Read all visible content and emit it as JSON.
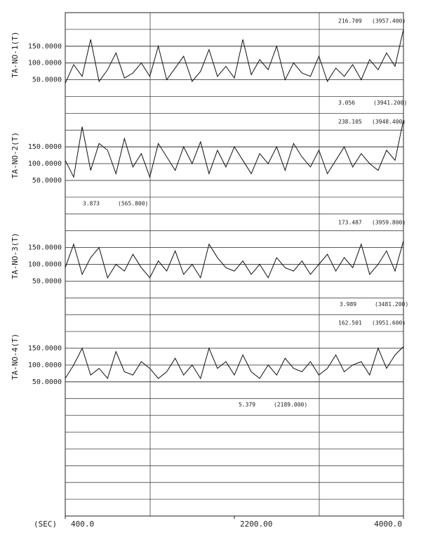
{
  "chart_data": [
    {
      "type": "line",
      "y_label": "TA-NO-1(T)",
      "max_label": "216.709",
      "max_time_label": "(3957.400)",
      "min_label": "3.056",
      "min_time_label": "(3941.200)",
      "xlim": [
        400,
        4000
      ],
      "ylim": [
        0,
        250
      ],
      "yticks": [
        {
          "value": 50,
          "label": "50.0000"
        },
        {
          "value": 100,
          "label": "100.0000"
        },
        {
          "value": 150,
          "label": "150.0000"
        }
      ],
      "color": "#111",
      "x": [
        400,
        490,
        580,
        670,
        760,
        850,
        940,
        1030,
        1120,
        1210,
        1300,
        1390,
        1480,
        1570,
        1660,
        1750,
        1840,
        1930,
        2020,
        2110,
        2200,
        2290,
        2380,
        2470,
        2560,
        2650,
        2740,
        2830,
        2920,
        3010,
        3100,
        3190,
        3280,
        3370,
        3460,
        3550,
        3640,
        3730,
        3820,
        3910,
        4000
      ],
      "values": [
        40,
        95,
        60,
        170,
        45,
        80,
        130,
        55,
        70,
        100,
        60,
        150,
        50,
        85,
        120,
        45,
        75,
        140,
        60,
        90,
        55,
        170,
        65,
        110,
        80,
        150,
        50,
        100,
        70,
        60,
        120,
        45,
        85,
        60,
        95,
        50,
        110,
        80,
        130,
        90,
        200
      ]
    },
    {
      "type": "line",
      "y_label": "TA-NO-2(T)",
      "max_label": "238.105",
      "max_time_label": "(3948.400)",
      "min_label": "3.873",
      "min_time_label": "(565.800)",
      "xlim": [
        400,
        4000
      ],
      "ylim": [
        0,
        250
      ],
      "yticks": [
        {
          "value": 50,
          "label": "50.0000"
        },
        {
          "value": 100,
          "label": "100.0000"
        },
        {
          "value": 150,
          "label": "150.0000"
        }
      ],
      "color": "#111",
      "x": [
        400,
        490,
        580,
        670,
        760,
        850,
        940,
        1030,
        1120,
        1210,
        1300,
        1390,
        1480,
        1570,
        1660,
        1750,
        1840,
        1930,
        2020,
        2110,
        2200,
        2290,
        2380,
        2470,
        2560,
        2650,
        2740,
        2830,
        2920,
        3010,
        3100,
        3190,
        3280,
        3370,
        3460,
        3550,
        3640,
        3730,
        3820,
        3910,
        4000
      ],
      "values": [
        110,
        60,
        210,
        80,
        160,
        140,
        70,
        175,
        90,
        130,
        60,
        160,
        120,
        80,
        150,
        100,
        165,
        70,
        140,
        90,
        150,
        110,
        70,
        130,
        100,
        150,
        80,
        160,
        120,
        90,
        140,
        70,
        110,
        150,
        90,
        130,
        100,
        80,
        140,
        110,
        230
      ]
    },
    {
      "type": "line",
      "y_label": "TA-NO-3(T)",
      "max_label": "173.487",
      "max_time_label": "(3959.800)",
      "min_label": "3.989",
      "min_time_label": "(3481.200)",
      "xlim": [
        400,
        4000
      ],
      "ylim": [
        0,
        250
      ],
      "yticks": [
        {
          "value": 50,
          "label": "50.0000"
        },
        {
          "value": 100,
          "label": "100.0000"
        },
        {
          "value": 150,
          "label": "150.0000"
        }
      ],
      "color": "#111",
      "x": [
        400,
        490,
        580,
        670,
        760,
        850,
        940,
        1030,
        1120,
        1210,
        1300,
        1390,
        1480,
        1570,
        1660,
        1750,
        1840,
        1930,
        2020,
        2110,
        2200,
        2290,
        2380,
        2470,
        2560,
        2650,
        2740,
        2830,
        2920,
        3010,
        3100,
        3190,
        3280,
        3370,
        3460,
        3550,
        3640,
        3730,
        3820,
        3910,
        4000
      ],
      "values": [
        90,
        160,
        70,
        120,
        150,
        60,
        100,
        80,
        130,
        90,
        60,
        110,
        80,
        140,
        70,
        100,
        60,
        160,
        120,
        90,
        80,
        110,
        70,
        100,
        60,
        120,
        90,
        80,
        110,
        70,
        100,
        130,
        80,
        120,
        90,
        160,
        70,
        100,
        140,
        80,
        170
      ]
    },
    {
      "type": "line",
      "y_label": "TA-NO-4(T)",
      "max_label": "162.501",
      "max_time_label": "(3951.600)",
      "min_label": "5.379",
      "min_time_label": "(2189.000)",
      "x_label": "(SEC)",
      "xlim": [
        400,
        4000
      ],
      "ylim": [
        0,
        250
      ],
      "xticks": [
        {
          "value": 400,
          "label": "400.0"
        },
        {
          "value": 2200,
          "label": "2200.00"
        },
        {
          "value": 4000,
          "label": "4000.0"
        }
      ],
      "yticks": [
        {
          "value": 50,
          "label": "50.0000"
        },
        {
          "value": 100,
          "label": "100.0000"
        },
        {
          "value": 150,
          "label": "150.0000"
        }
      ],
      "color": "#111",
      "x": [
        400,
        490,
        580,
        670,
        760,
        850,
        940,
        1030,
        1120,
        1210,
        1300,
        1390,
        1480,
        1570,
        1660,
        1750,
        1840,
        1930,
        2020,
        2110,
        2200,
        2290,
        2380,
        2470,
        2560,
        2650,
        2740,
        2830,
        2920,
        3010,
        3100,
        3190,
        3280,
        3370,
        3460,
        3550,
        3640,
        3730,
        3820,
        3910,
        4000
      ],
      "values": [
        60,
        100,
        150,
        70,
        90,
        60,
        140,
        80,
        70,
        110,
        90,
        60,
        80,
        120,
        70,
        100,
        60,
        150,
        90,
        110,
        70,
        130,
        80,
        60,
        100,
        70,
        120,
        90,
        80,
        110,
        70,
        90,
        130,
        80,
        100,
        110,
        70,
        150,
        90,
        130,
        155
      ]
    }
  ]
}
